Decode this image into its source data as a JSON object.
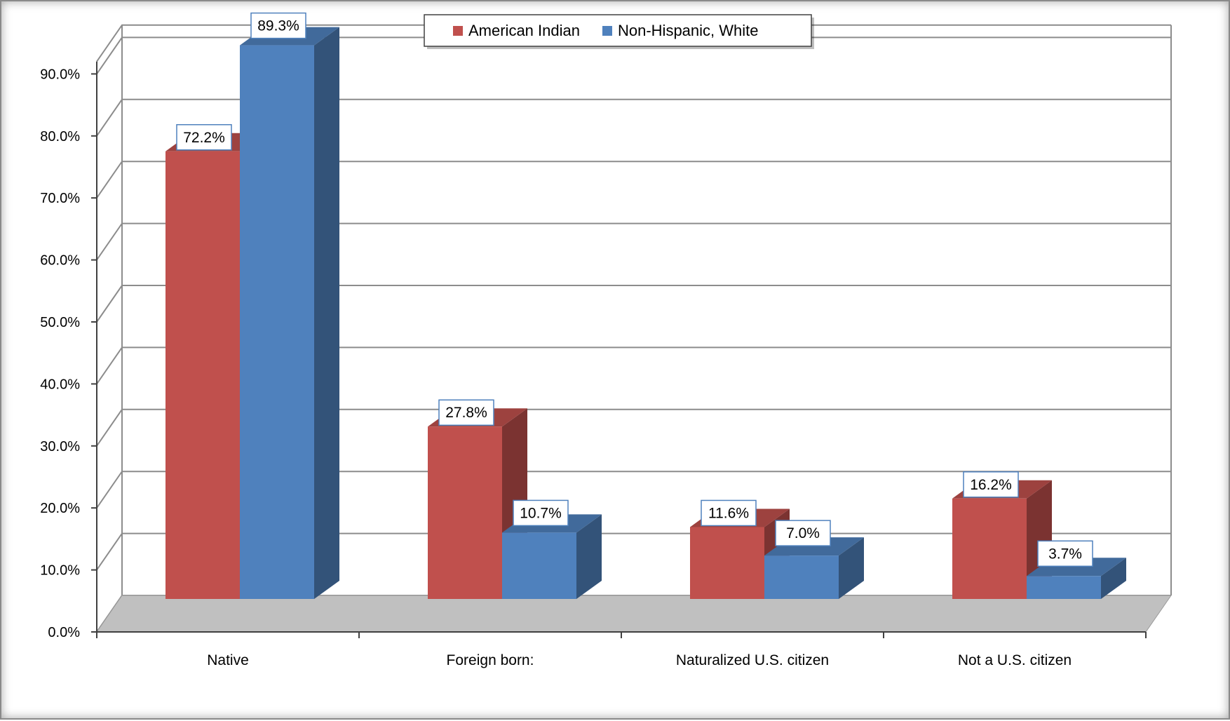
{
  "chart_data": {
    "type": "bar",
    "style": "3d-clustered-column",
    "categories": [
      "Native",
      "Foreign born:",
      "Naturalized U.S. citizen",
      "Not a U.S. citizen"
    ],
    "series": [
      {
        "name": "American Indian",
        "values": [
          72.2,
          27.8,
          11.6,
          16.2
        ],
        "color": "#c0504d",
        "labels": [
          "72.2%",
          "27.8%",
          "11.6%",
          "16.2%"
        ]
      },
      {
        "name": "Non-Hispanic, White",
        "values": [
          89.3,
          10.7,
          7.0,
          3.7
        ],
        "color": "#4f81bd",
        "labels": [
          "89.3%",
          "10.7%",
          "7.0%",
          "3.7%"
        ]
      }
    ],
    "y_ticks": [
      "0.0%",
      "10.0%",
      "20.0%",
      "30.0%",
      "40.0%",
      "50.0%",
      "60.0%",
      "70.0%",
      "80.0%",
      "90.0%"
    ],
    "ylim": [
      0,
      90
    ],
    "grid": true,
    "legend_position": "top-center",
    "floor_color": "#c0c0c0"
  }
}
